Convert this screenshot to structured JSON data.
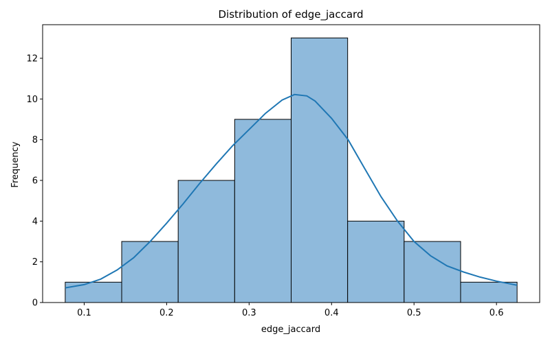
{
  "chart_data": {
    "type": "bar",
    "title": "Distribution of edge_jaccard",
    "xlabel": "edge_jaccard",
    "ylabel": "Frequency",
    "bins": [
      {
        "start": 0.077,
        "end": 0.1455,
        "count": 1
      },
      {
        "start": 0.1455,
        "end": 0.214,
        "count": 3
      },
      {
        "start": 0.214,
        "end": 0.2825,
        "count": 6
      },
      {
        "start": 0.2825,
        "end": 0.351,
        "count": 9
      },
      {
        "start": 0.351,
        "end": 0.4195,
        "count": 13
      },
      {
        "start": 0.4195,
        "end": 0.488,
        "count": 4
      },
      {
        "start": 0.488,
        "end": 0.5565,
        "count": 3
      },
      {
        "start": 0.5565,
        "end": 0.625,
        "count": 1
      }
    ],
    "kde": [
      [
        0.077,
        0.72
      ],
      [
        0.1,
        0.88
      ],
      [
        0.12,
        1.15
      ],
      [
        0.14,
        1.6
      ],
      [
        0.16,
        2.2
      ],
      [
        0.18,
        3.0
      ],
      [
        0.2,
        3.9
      ],
      [
        0.22,
        4.85
      ],
      [
        0.24,
        5.85
      ],
      [
        0.26,
        6.8
      ],
      [
        0.28,
        7.7
      ],
      [
        0.3,
        8.5
      ],
      [
        0.32,
        9.3
      ],
      [
        0.34,
        9.95
      ],
      [
        0.355,
        10.22
      ],
      [
        0.37,
        10.15
      ],
      [
        0.38,
        9.9
      ],
      [
        0.4,
        9.05
      ],
      [
        0.42,
        8.0
      ],
      [
        0.44,
        6.6
      ],
      [
        0.46,
        5.2
      ],
      [
        0.48,
        4.0
      ],
      [
        0.5,
        3.0
      ],
      [
        0.52,
        2.3
      ],
      [
        0.54,
        1.8
      ],
      [
        0.56,
        1.5
      ],
      [
        0.58,
        1.25
      ],
      [
        0.6,
        1.05
      ],
      [
        0.625,
        0.85
      ]
    ],
    "xticks": [
      0.1,
      0.2,
      0.3,
      0.4,
      0.5,
      0.6
    ],
    "yticks": [
      0,
      2,
      4,
      6,
      8,
      10,
      12
    ],
    "xlim": [
      0.0496,
      0.6524
    ],
    "ylim": [
      0,
      13.65
    ],
    "colors": {
      "bar_fill": "#8fbadc",
      "bar_edge": "#000000",
      "kde_line": "#1f77b4"
    }
  }
}
